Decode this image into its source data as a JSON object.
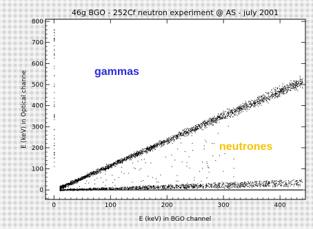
{
  "chart_data": {
    "type": "scatter",
    "title": "46g BGO - 252Cf neutron experiment @ AS - july 2001",
    "xlabel": "E (keV) in BGO channel",
    "ylabel": "E (keV) in Optical channe",
    "xlim": [
      -15,
      445
    ],
    "ylim": [
      -45,
      810
    ],
    "xticks": [
      0,
      100,
      200,
      300,
      400
    ],
    "yticks": [
      0,
      100,
      200,
      300,
      400,
      500,
      600,
      700,
      800
    ],
    "grid": false,
    "annotations": [
      {
        "text": "gammas",
        "color": "#2b2bd9"
      },
      {
        "text": "neutrones",
        "color": "#f5c400"
      }
    ],
    "series": [
      {
        "type": "band",
        "x_range": [
          10,
          440
        ],
        "slope": [
          1.09,
          1.26
        ]
      },
      {
        "type": "band",
        "x_range": [
          10,
          440
        ],
        "slope": [
          0.04,
          0.12
        ]
      },
      {
        "type": "baseline",
        "y": 0,
        "x_range": [
          10,
          440
        ]
      },
      {
        "type": "vertical",
        "x": 0,
        "y_range": [
          110,
          770
        ]
      }
    ]
  },
  "colors": {
    "plot_bg": "#ffffff",
    "points": "#000000"
  }
}
